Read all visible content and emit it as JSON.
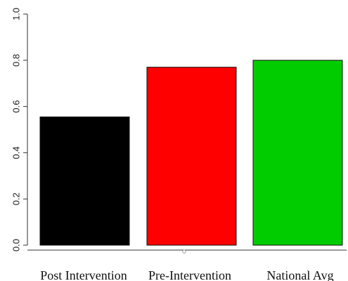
{
  "chart_data": {
    "type": "bar",
    "categories": [
      "Post Intervention",
      "Pre-Intervention",
      "National Avg"
    ],
    "values": [
      0.555,
      0.77,
      0.8
    ],
    "colors": [
      "#000000",
      "#ff0000",
      "#00cc00"
    ],
    "ylim": [
      0,
      1.0
    ],
    "yticks": [
      "0.0",
      "0.2",
      "0.4",
      "0.6",
      "0.8",
      "1.0"
    ],
    "title": "",
    "xlabel": "",
    "ylabel": ""
  }
}
